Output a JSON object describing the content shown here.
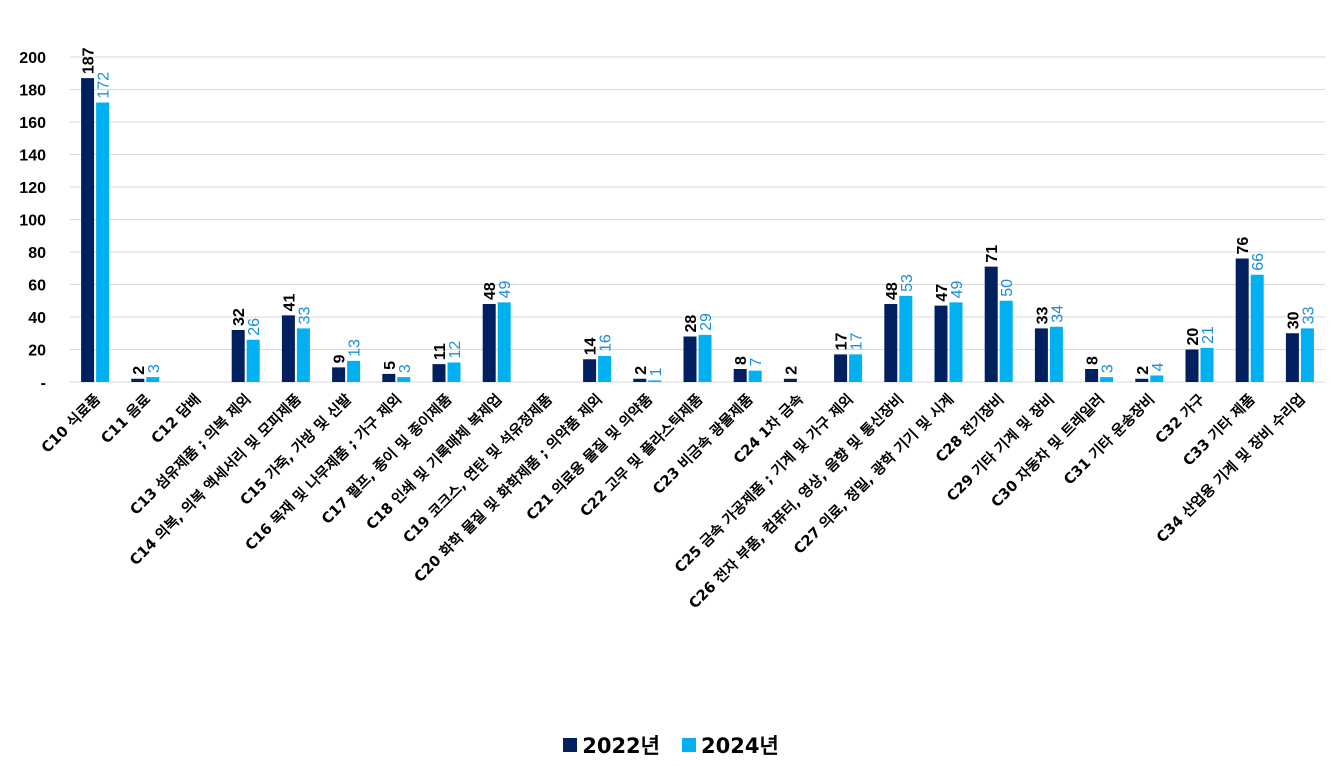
{
  "chart_data": {
    "type": "bar",
    "title": "",
    "xlabel": "",
    "ylabel": "",
    "ylim": [
      0,
      200
    ],
    "yticks": [
      0,
      20,
      40,
      60,
      80,
      100,
      120,
      140,
      160,
      180,
      200
    ],
    "ytick_labels": [
      "-",
      "20",
      "40",
      "60",
      "80",
      "100",
      "120",
      "140",
      "160",
      "180",
      "200"
    ],
    "grid": true,
    "legend_position": "bottom",
    "categories": [
      "C10 식료품",
      "C11 음료",
      "C12 담배",
      "C13 섬유제품 ; 의복 제외",
      "C14 의복, 의복 액세서리 및 모피제품",
      "C15 가죽, 가방 및 신발",
      "C16 목재 및 나무제품 ; 가구 제외",
      "C17 펄프, 종이 및 종이제품",
      "C18 인쇄 및 기록매체 복제업",
      "C19 코크스, 연탄 및 석유정제품",
      "C20 화학 물질 및 화학제품 ; 의약품 제외",
      "C21 의료용 물질 및 의약품",
      "C22 고무 및 플라스틱제품",
      "C23 비금속 광물제품",
      "C24 1차 금속",
      "C25 금속 가공제품 ; 기계 및 가구 제외",
      "C26 전자 부품, 컴퓨터, 영상, 음향 및 통신장비",
      "C27 의료, 정밀, 광학 기기 및 시계",
      "C28 전기장비",
      "C29 기타 기계 및 장비",
      "C30 자동차 및 트레일러",
      "C31 기타 운송장비",
      "C32 가구",
      "C33 기타 제품",
      "C34 산업용 기계 및 장비 수리업"
    ],
    "series": [
      {
        "name": "2022년",
        "color": "#002060",
        "values": [
          187,
          2,
          0,
          32,
          41,
          9,
          5,
          11,
          48,
          0,
          14,
          2,
          28,
          8,
          2,
          17,
          48,
          47,
          71,
          33,
          8,
          2,
          20,
          76,
          30
        ],
        "labels": [
          "187",
          "2",
          "",
          "32",
          "41",
          "9",
          "5",
          "11",
          "48",
          "",
          "14",
          "2",
          "28",
          "8",
          "2",
          "17",
          "48",
          "47",
          "71",
          "33",
          "8",
          "2",
          "20",
          "76",
          "30"
        ]
      },
      {
        "name": "2024년",
        "color": "#00b0f0",
        "values": [
          172,
          3,
          0,
          26,
          33,
          13,
          3,
          12,
          49,
          0,
          16,
          1,
          29,
          7,
          0,
          17,
          53,
          49,
          50,
          34,
          3,
          4,
          21,
          66,
          33
        ],
        "labels": [
          "172",
          "3",
          "",
          "26",
          "33",
          "13",
          "3",
          "12",
          "49",
          "",
          "16",
          "1",
          "29",
          "7",
          "",
          "17",
          "53",
          "49",
          "50",
          "34",
          "3",
          "4",
          "21",
          "66",
          "33"
        ]
      }
    ]
  }
}
